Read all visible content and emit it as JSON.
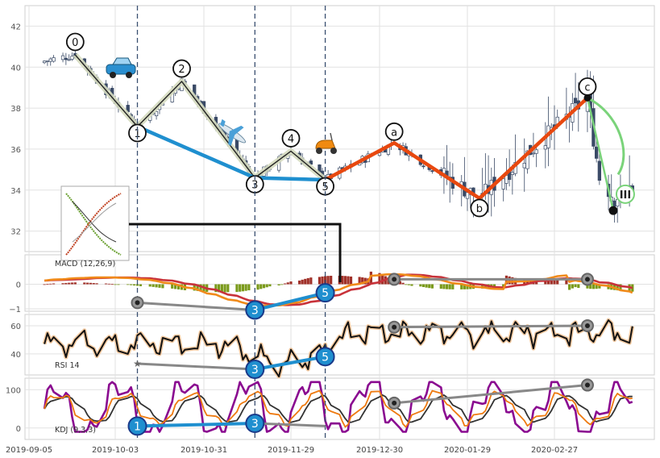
{
  "chart_data": {
    "type": "line",
    "title": "",
    "x_ticks": [
      "2019-09-05",
      "2019-10-03",
      "2019-10-31",
      "2019-11-29",
      "2019-12-30",
      "2020-01-29",
      "2020-02-27"
    ],
    "grid": true,
    "colors": {
      "candle_up": "#ffffff",
      "candle_down": "#3a4a66",
      "wave_impulse": "#1f8fcf",
      "wave_corrective": "#e8480f",
      "wave_zigzag": "#222222",
      "macd_line": "#f08a1a",
      "macd_signal": "#c8323a",
      "macd_hist_pos": "#a03028",
      "macd_hist_neg": "#7a9a1a",
      "rsi": "#111111",
      "kdj_k": "#ee7a10",
      "kdj_d": "#333333",
      "kdj_j": "#8a0a90",
      "divergence": "#888888",
      "next_target": "#7ad37a"
    },
    "panels": [
      {
        "name": "price",
        "ylim": [
          31,
          43
        ],
        "yticks": [
          32,
          34,
          36,
          38,
          40,
          42
        ],
        "wave_labels": [
          {
            "label": "0",
            "date": "2019-09-20",
            "value": 40.6
          },
          {
            "label": "1",
            "date": "2019-10-10",
            "value": 37.1
          },
          {
            "label": "2",
            "date": "2019-10-24",
            "value": 39.3
          },
          {
            "label": "3",
            "date": "2019-11-17",
            "value": 34.6
          },
          {
            "label": "4",
            "date": "2019-11-29",
            "value": 35.9
          },
          {
            "label": "5",
            "date": "2019-12-11",
            "value": 34.5
          },
          {
            "label": "a",
            "date": "2020-01-04",
            "value": 36.3
          },
          {
            "label": "b",
            "date": "2020-02-02",
            "value": 33.6
          },
          {
            "label": "c",
            "date": "2020-03-09",
            "value": 38.5
          }
        ],
        "target_label": "III"
      },
      {
        "name": "macd",
        "label": "MACD (12,26,9)",
        "ylim": [
          -1.1,
          1.2
        ],
        "yticks": [
          -1,
          0
        ]
      },
      {
        "name": "rsi",
        "label": "RSI 14",
        "ylim": [
          25,
          68
        ],
        "yticks": [
          40,
          60
        ]
      },
      {
        "name": "kdj",
        "label": "KDJ (9,3,3)",
        "ylim": [
          -30,
          130
        ],
        "yticks": [
          0,
          100
        ]
      }
    ]
  }
}
